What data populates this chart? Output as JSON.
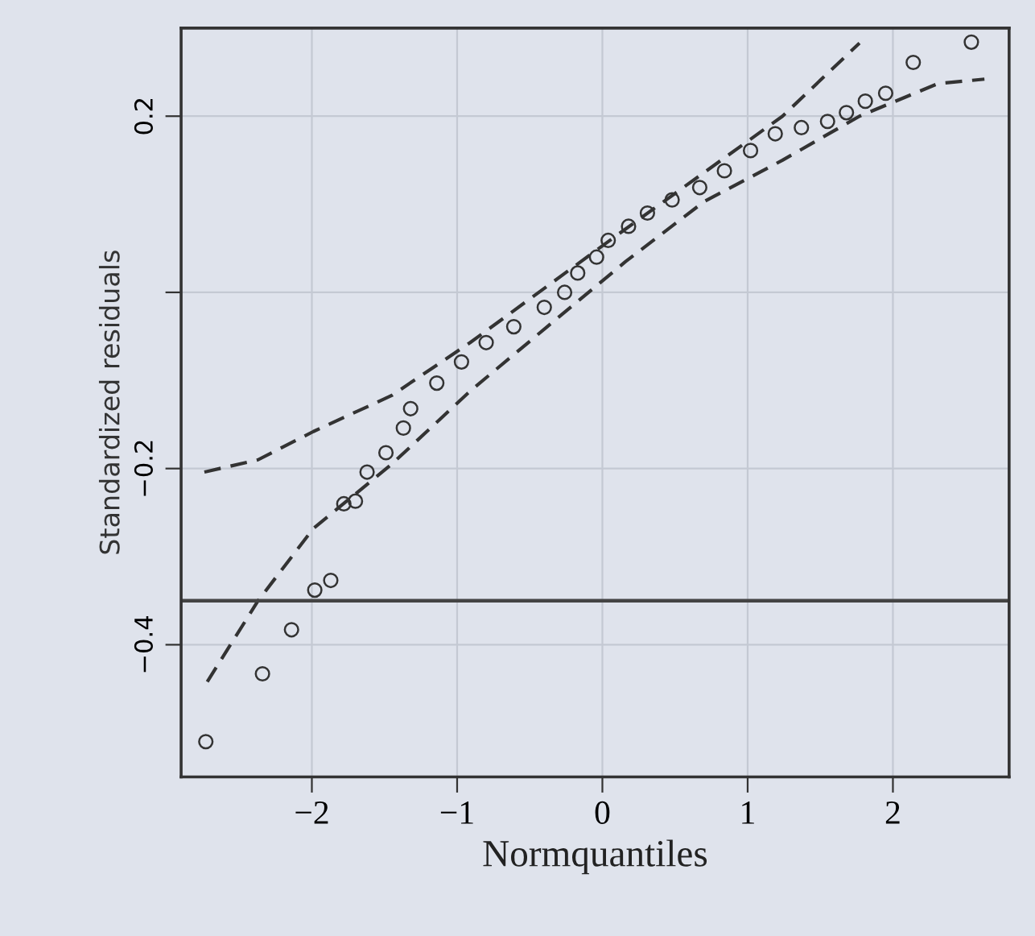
{
  "chart_data": {
    "type": "scatter",
    "xlabel": "Normquantiles",
    "ylabel": "Standardized residuals",
    "xlim": [
      -2.9,
      2.8
    ],
    "ylim": [
      -0.55,
      0.3
    ],
    "xticks": [
      -2,
      -1,
      0,
      1,
      2
    ],
    "yticks": [
      {
        "value": -0.4,
        "label": "−0.4"
      },
      {
        "value": -0.2,
        "label": "−0.2"
      },
      {
        "value": 0,
        "label": null
      },
      {
        "value": 0.2,
        "label": "0.2"
      }
    ],
    "grid": true,
    "legend": false,
    "series": [
      {
        "color": "#333333",
        "marker": "circle",
        "x": [
          -2.73,
          -2.34,
          -2.14,
          -1.98,
          -1.87,
          -1.78,
          -1.7,
          -1.62,
          -1.49,
          -1.37,
          -1.32,
          -1.14,
          -0.97,
          -0.8,
          -0.61,
          -0.4,
          -0.26,
          -0.17,
          -0.04,
          0.04,
          0.18,
          0.31,
          0.48,
          0.67,
          0.84,
          1.02,
          1.19,
          1.37,
          1.55,
          1.68,
          1.81,
          1.95,
          2.14,
          2.54
        ],
        "values": [
          -0.51,
          -0.433,
          -0.383,
          -0.338,
          -0.327,
          -0.24,
          -0.237,
          -0.204,
          -0.182,
          -0.154,
          -0.132,
          -0.103,
          -0.079,
          -0.057,
          -0.039,
          -0.017,
          0.0,
          0.022,
          0.04,
          0.059,
          0.075,
          0.09,
          0.105,
          0.119,
          0.138,
          0.161,
          0.18,
          0.187,
          0.194,
          0.204,
          0.217,
          0.226,
          0.261,
          0.284
        ]
      },
      {
        "type": "line",
        "color": "#333333",
        "marker": "none",
        "line_style": "dashed",
        "x": [
          -2.74,
          -2.37,
          -1.99,
          -1.45,
          -0.91,
          -0.38,
          0.16,
          0.7,
          1.24,
          1.77
        ],
        "values": [
          -0.204,
          -0.19,
          -0.158,
          -0.117,
          -0.057,
          0.007,
          0.072,
          0.136,
          0.2,
          0.283
        ]
      },
      {
        "type": "line",
        "color": "#333333",
        "marker": "none",
        "line_style": "dashed",
        "x": [
          -2.72,
          -2.37,
          -1.99,
          -1.45,
          -0.91,
          -0.38,
          0.16,
          0.7,
          1.24,
          1.77,
          2.31,
          2.63
        ],
        "values": [
          -0.442,
          -0.35,
          -0.268,
          -0.195,
          -0.112,
          -0.039,
          0.035,
          0.103,
          0.15,
          0.2,
          0.237,
          0.242
        ]
      }
    ],
    "ref_lines": [
      {
        "axis": "y",
        "value": -0.35,
        "color": "#444444",
        "line_style": "solid"
      }
    ]
  }
}
